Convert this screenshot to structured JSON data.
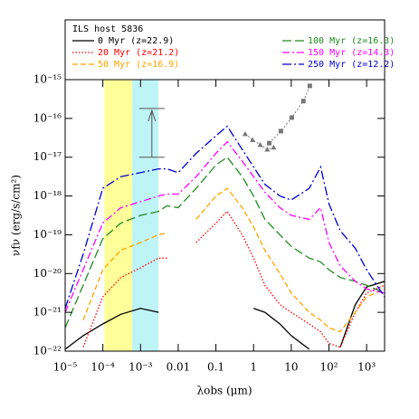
{
  "chart_data": {
    "type": "line",
    "legend_title": "ILS host 5836",
    "xlabel": "λobs (μm)",
    "ylabel": "νfν (erg/s/cm²)",
    "log_x": true,
    "log_y": true,
    "xlim": [
      1e-05,
      3000
    ],
    "ylim": [
      1e-22,
      1e-15
    ],
    "xticks": [
      {
        "value": 1e-05,
        "label": "10⁻⁵"
      },
      {
        "value": 0.0001,
        "label": "10⁻⁴"
      },
      {
        "value": 0.001,
        "label": "10⁻³"
      },
      0.01,
      0.1,
      1,
      10,
      {
        "value": 100,
        "label": "10²"
      },
      {
        "value": 1000,
        "label": "10³"
      }
    ],
    "yticks": [
      {
        "value": 1e-22,
        "label": "10⁻²²"
      },
      {
        "value": 1e-21,
        "label": "10⁻²¹"
      },
      {
        "value": 1e-20,
        "label": "10⁻²⁰"
      },
      {
        "value": 1e-19,
        "label": "10⁻¹⁹"
      },
      {
        "value": 1e-18,
        "label": "10⁻¹⁸"
      },
      {
        "value": 1e-17,
        "label": "10⁻¹⁷"
      },
      {
        "value": 1e-16,
        "label": "10⁻¹⁶"
      },
      {
        "value": 1e-15,
        "label": "10⁻¹⁵"
      }
    ],
    "bands": [
      {
        "x": [
          0.00011,
          0.0006
        ],
        "color": "#ffff99"
      },
      {
        "x": [
          0.0006,
          0.003
        ],
        "color": "#bff4f7"
      }
    ],
    "limit": {
      "x": 0.002,
      "low": 1e-17,
      "high": 1.8e-16,
      "color": "#555555"
    },
    "observations": [
      {
        "marker": "square",
        "color": "#777777",
        "x": [
          2.6,
          5.3,
          10.3,
          21,
          31
        ],
        "values": [
          2.3e-17,
          4.7e-17,
          1.05e-16,
          2.8e-16,
          6.9e-16
        ]
      },
      {
        "marker": "triangle",
        "color": "#777777",
        "x": [
          0.6,
          0.94,
          1.5,
          2.3,
          3.4
        ],
        "values": [
          4e-17,
          2.8e-17,
          2.1e-17,
          1.6e-17,
          1.8e-17
        ]
      }
    ],
    "x": [
      1e-05,
      3e-05,
      0.0001,
      0.0003,
      0.001,
      0.003,
      0.005,
      0.01,
      0.03,
      0.1,
      0.2,
      0.5,
      1,
      2,
      5,
      10,
      30,
      60,
      100,
      200,
      500,
      1000,
      3000
    ],
    "series": [
      {
        "name": "0 Myr (z=22.9)",
        "color": "#000000",
        "dash": "none",
        "values": [
          1.12e-22,
          2.5e-22,
          5e-22,
          8.9e-22,
          1.26e-21,
          1e-21,
          null,
          null,
          null,
          null,
          null,
          null,
          1.26e-21,
          1e-21,
          5e-22,
          2.5e-22,
          1.12e-22,
          null,
          null,
          1.26e-22,
          1.58e-21,
          4.5e-21,
          6.3e-21
        ]
      },
      {
        "name": "20 Myr (z=21.2)",
        "color": "#ff0000",
        "dash": "1.5,2",
        "values": [
          null,
          1.26e-22,
          2.5e-21,
          7.9e-21,
          1.41e-20,
          2.5e-20,
          2.5e-20,
          null,
          6.3e-20,
          2e-19,
          4e-19,
          1e-19,
          2.5e-20,
          5e-21,
          1.58e-21,
          1e-21,
          5e-22,
          3.16e-22,
          1.58e-22,
          1.26e-22,
          1e-21,
          3.16e-21,
          5e-21
        ]
      },
      {
        "name": "50 Myr (z=16.9)",
        "color": "#ffa500",
        "dash": "6,3",
        "values": [
          null,
          6.3e-22,
          1.26e-20,
          4e-20,
          6.3e-20,
          1e-19,
          1.12e-19,
          null,
          2.5e-19,
          1e-18,
          1.58e-18,
          5e-19,
          1.58e-19,
          4e-20,
          1e-20,
          3.16e-21,
          1e-21,
          6.3e-22,
          4e-22,
          3.16e-22,
          1e-21,
          2.5e-21,
          4e-21
        ]
      },
      {
        "name": "100 Myr (z=16.3)",
        "color": "#228b22",
        "dash": "10,4",
        "values": [
          4e-22,
          5e-21,
          7.9e-20,
          2e-19,
          3.16e-19,
          4e-19,
          5.6e-19,
          5e-19,
          1.58e-18,
          6.3e-18,
          1e-17,
          3.16e-18,
          1e-18,
          2.5e-19,
          1e-19,
          5e-20,
          2.5e-20,
          2e-20,
          1.26e-20,
          7.9e-21,
          6.3e-21,
          5e-21,
          3.16e-21
        ]
      },
      {
        "name": "150 Myr (z=14.3)",
        "color": "#ff00ff",
        "dash": "8,3,2,3",
        "values": [
          1e-21,
          1.26e-20,
          2e-19,
          5e-19,
          7.1e-19,
          1e-18,
          1.12e-18,
          1.12e-18,
          3.16e-18,
          1.26e-17,
          2.5e-17,
          7.9e-18,
          3.16e-18,
          1.26e-18,
          5e-19,
          3.16e-19,
          2.5e-19,
          5e-19,
          6.3e-20,
          1.58e-20,
          6.3e-21,
          4e-21,
          3.16e-21
        ]
      },
      {
        "name": "250 Myr (z=12.2)",
        "color": "#0000cd",
        "dash": "10,3,2,3",
        "values": [
          1.26e-21,
          3.16e-20,
          1.58e-18,
          3.16e-18,
          4e-18,
          5e-18,
          5e-18,
          4e-18,
          1.26e-17,
          3.55e-17,
          6.3e-17,
          1.58e-17,
          5.6e-18,
          2e-18,
          1e-18,
          7.9e-19,
          1.58e-18,
          5.6e-18,
          6.3e-19,
          1.26e-19,
          4.5e-20,
          1.26e-20,
          2.5e-21
        ]
      }
    ]
  }
}
